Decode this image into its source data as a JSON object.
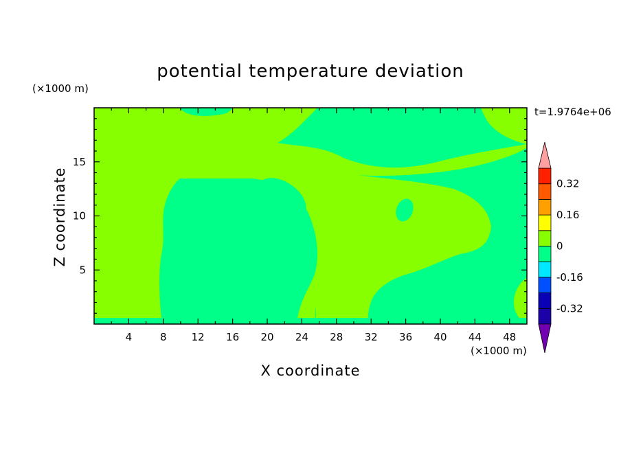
{
  "chart_data": {
    "type": "heatmap",
    "subtype": "filled-contour",
    "title": "potential temperature deviation",
    "xlabel": "X coordinate",
    "ylabel": "Z coordinate",
    "x_unit": "(×1000 m)",
    "y_unit": "(×1000 m)",
    "time_label": "t=1.9764e+06",
    "xlim": [
      0,
      50
    ],
    "ylim": [
      0,
      20
    ],
    "x_ticks": [
      4,
      8,
      12,
      16,
      20,
      24,
      28,
      32,
      36,
      40,
      44,
      48
    ],
    "y_ticks": [
      5,
      10,
      15
    ],
    "grid": false,
    "colorbar": {
      "position": "right",
      "levels": [
        -0.4,
        -0.32,
        -0.24,
        -0.16,
        -0.08,
        0,
        0.08,
        0.16,
        0.24,
        0.32,
        0.4
      ],
      "tick_labels": [
        "0.32",
        "0.16",
        "0",
        "-0.16",
        "-0.32"
      ],
      "tick_values": [
        0.32,
        0.16,
        0,
        -0.16,
        -0.32
      ],
      "colors_low_to_high": [
        "#4b00a0",
        "#1c00a8",
        "#0a00b4",
        "#0050ff",
        "#00e8ff",
        "#00ff88",
        "#88ff00",
        "#ffff00",
        "#ff9f00",
        "#ff5a00",
        "#ff2000",
        "#ffa0a0"
      ],
      "under_color": "#7000b0",
      "over_color": "#ffa0a0",
      "extend": "both"
    },
    "field_values_shown": [
      -0.08,
      0.08
    ],
    "field_colors": {
      "negative_band": "#00ff88",
      "positive_band": "#88ff00"
    }
  }
}
